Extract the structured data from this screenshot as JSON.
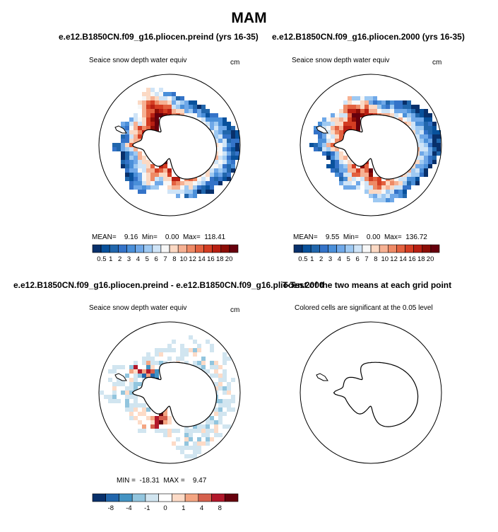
{
  "title": "MAM",
  "colors": {
    "ocean_bg": "#ffffff",
    "coast": "#000000",
    "abs_palette": [
      "#08306b",
      "#08519c",
      "#2166ac",
      "#3473c8",
      "#4a8fd9",
      "#6fa8e8",
      "#9ec9f2",
      "#cfe4f7",
      "#f7f7f7",
      "#fbd9c4",
      "#f6b193",
      "#ee8a66",
      "#e3613f",
      "#d43d22",
      "#b81f12",
      "#8c0d06",
      "#67000d"
    ],
    "diff_palette": [
      "#08306b",
      "#2166ac",
      "#4393c3",
      "#92c5de",
      "#d1e5f0",
      "#ffffff",
      "#fddbc7",
      "#f4a582",
      "#d6604d",
      "#b2182b",
      "#67000d"
    ]
  },
  "panels": [
    {
      "run_title": "e.e12.B1850CN.f09_g16.pliocen.preind (yrs 16-35)",
      "var_title": "Seaice snow depth water equiv",
      "units": "cm",
      "stats_text": "MEAN=    9.16  Min=    0.00  Max=  118.41"
    },
    {
      "run_title": "e.e12.B1850CN.f09_g16.pliocen.2000 (yrs 16-35)",
      "var_title": "Seaice snow depth water equiv",
      "units": "cm",
      "stats_text": "MEAN=    9.55  Min=    0.00  Max=  136.72"
    },
    {
      "run_title": "e.e12.B1850CN.f09_g16.pliocen.preind - e.e12.B1850CN.f09_g16.pliocen.2000",
      "var_title": "Seaice snow depth water equiv",
      "units": "cm",
      "stats_text": "MIN =  -18.31  MAX =    9.47"
    },
    {
      "run_title": "T-Test of the two means at each grid point",
      "var_title": "Colored cells are significant at the 0.05 level"
    }
  ],
  "chart_data": [
    {
      "type": "heatmap",
      "title": "Seaice snow depth water equiv",
      "units": "cm",
      "projection": "south polar stereographic",
      "colorbar_ticks": [
        "0.5",
        "1",
        "2",
        "3",
        "4",
        "5",
        "6",
        "7",
        "8",
        "10",
        "12",
        "14",
        "16",
        "18",
        "20"
      ],
      "stats": {
        "mean": 9.16,
        "min": 0.0,
        "max": 118.41
      }
    },
    {
      "type": "heatmap",
      "title": "Seaice snow depth water equiv",
      "units": "cm",
      "projection": "south polar stereographic",
      "colorbar_ticks": [
        "0.5",
        "1",
        "2",
        "3",
        "4",
        "5",
        "6",
        "7",
        "8",
        "10",
        "12",
        "14",
        "16",
        "18",
        "20"
      ],
      "stats": {
        "mean": 9.55,
        "min": 0.0,
        "max": 136.72
      }
    },
    {
      "type": "heatmap",
      "title": "Seaice snow depth water equiv",
      "units": "cm",
      "projection": "south polar stereographic",
      "colorbar_ticks": [
        "-8",
        "-4",
        "-1",
        "0",
        "1",
        "4",
        "8"
      ],
      "stats": {
        "min": -18.31,
        "max": 9.47
      }
    },
    {
      "type": "heatmap",
      "title": "Colored cells are significant at the 0.05 level",
      "projection": "south polar stereographic"
    }
  ]
}
